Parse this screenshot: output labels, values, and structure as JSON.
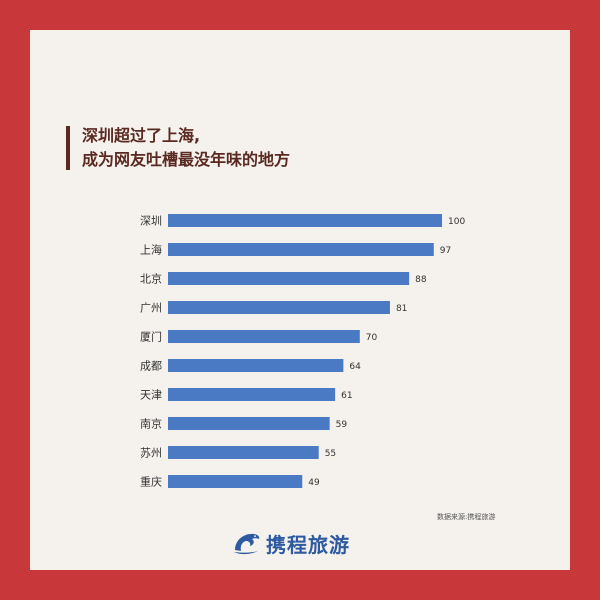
{
  "title_lines": [
    "深圳超过了上海,",
    "成为网友吐槽最没年味的地方"
  ],
  "source": "数据来源:携程旅游",
  "brand": {
    "name": "携程旅游",
    "logo_icon": "dolphin-logo-icon",
    "color": "#2d5aa0"
  },
  "colors": {
    "frame": "#c8383b",
    "panel": "#f5f1ec",
    "bar": "#4a7ac4",
    "title": "#5a2a22"
  },
  "chart_data": {
    "type": "bar",
    "orientation": "horizontal",
    "categories": [
      "深圳",
      "上海",
      "北京",
      "广州",
      "厦门",
      "成都",
      "天津",
      "南京",
      "苏州",
      "重庆"
    ],
    "values": [
      100,
      97,
      88,
      81,
      70,
      64,
      61,
      59,
      55,
      49
    ],
    "data_labels": [
      "100",
      "97",
      "88",
      "81",
      "70",
      "64",
      "61",
      "59",
      "55",
      "49"
    ],
    "xlim": [
      0,
      100
    ],
    "grid": false,
    "legend": "none"
  }
}
